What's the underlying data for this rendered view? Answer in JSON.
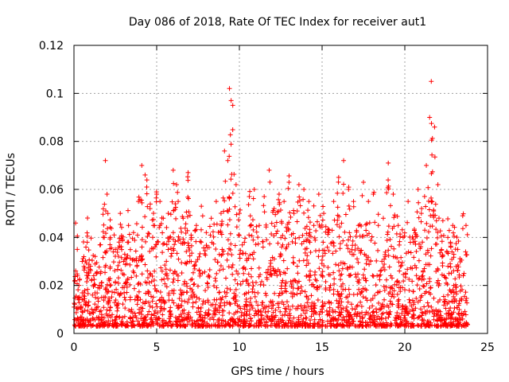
{
  "chart_data": {
    "type": "scatter",
    "title": "Day 086 of 2018, Rate Of TEC Index for receiver aut1",
    "xlabel": "GPS time / hours",
    "ylabel": "ROTI / TECUs",
    "xlim": [
      0,
      25
    ],
    "ylim": [
      0,
      0.12
    ],
    "x_ticks": [
      0,
      5,
      10,
      15,
      20,
      25
    ],
    "y_ticks": [
      0,
      0.02,
      0.04,
      0.06,
      0.08,
      0.1,
      0.12
    ],
    "x_tick_labels": [
      "0",
      "5",
      "10",
      "15",
      "20",
      "25"
    ],
    "y_tick_labels": [
      "0",
      "0.02",
      "0.04",
      "0.06",
      "0.08",
      "0.1",
      "0.12"
    ],
    "grid": true,
    "marker": "plus",
    "color": "#ff0000",
    "series": [
      {
        "x": [
          0.1,
          0.3,
          0.5,
          0.8,
          1.0,
          1.3,
          1.6,
          1.9,
          2.0,
          2.2,
          2.5,
          2.8,
          3.0,
          3.3,
          3.6,
          3.9,
          4.1,
          4.3,
          4.4,
          4.6,
          4.8,
          5.0,
          5.2,
          5.4,
          5.7,
          6.0,
          6.2,
          6.3,
          6.6,
          6.9,
          7.1,
          7.4,
          7.7,
          8.0,
          8.3,
          8.6,
          8.9,
          9.1,
          9.3,
          9.4,
          9.5,
          9.6,
          9.8,
          10.0,
          10.3,
          10.6,
          10.9,
          11.2,
          11.5,
          11.8,
          12.1,
          12.4,
          12.7,
          13.0,
          13.3,
          13.6,
          13.9,
          14.2,
          14.5,
          14.8,
          15.1,
          15.4,
          15.7,
          16.0,
          16.3,
          16.6,
          16.9,
          17.2,
          17.5,
          17.8,
          18.1,
          18.4,
          18.7,
          19.0,
          19.3,
          19.6,
          19.9,
          20.2,
          20.5,
          20.8,
          21.0,
          21.3,
          21.5,
          21.6,
          21.8,
          22.0,
          22.3,
          22.6,
          22.9,
          23.2,
          23.5,
          23.7
        ],
        "y": [
          0.046,
          0.02,
          0.03,
          0.038,
          0.028,
          0.015,
          0.025,
          0.072,
          0.058,
          0.04,
          0.035,
          0.05,
          0.03,
          0.045,
          0.042,
          0.055,
          0.07,
          0.066,
          0.061,
          0.052,
          0.045,
          0.058,
          0.055,
          0.048,
          0.05,
          0.068,
          0.062,
          0.055,
          0.048,
          0.067,
          0.04,
          0.045,
          0.053,
          0.042,
          0.048,
          0.055,
          0.045,
          0.076,
          0.072,
          0.102,
          0.097,
          0.095,
          0.062,
          0.05,
          0.038,
          0.057,
          0.06,
          0.045,
          0.057,
          0.068,
          0.052,
          0.058,
          0.055,
          0.063,
          0.05,
          0.062,
          0.06,
          0.055,
          0.045,
          0.058,
          0.05,
          0.042,
          0.055,
          0.065,
          0.072,
          0.06,
          0.055,
          0.045,
          0.063,
          0.055,
          0.058,
          0.045,
          0.048,
          0.071,
          0.058,
          0.045,
          0.04,
          0.055,
          0.038,
          0.06,
          0.05,
          0.07,
          0.09,
          0.105,
          0.086,
          0.062,
          0.047,
          0.04,
          0.045,
          0.035,
          0.049,
          0.045
        ]
      }
    ]
  }
}
